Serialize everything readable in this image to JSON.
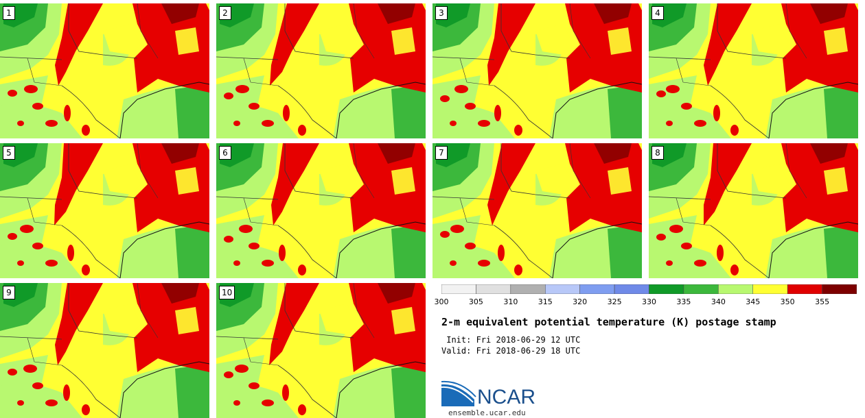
{
  "members": [
    "1",
    "2",
    "3",
    "4",
    "5",
    "6",
    "7",
    "8",
    "9",
    "10"
  ],
  "colorbar": {
    "ticks": [
      "300",
      "305",
      "310",
      "315",
      "320",
      "325",
      "330",
      "335",
      "340",
      "345",
      "350",
      "355"
    ],
    "colors": [
      "#f2f2f2",
      "#e0e0e0",
      "#b0b0b0",
      "#b8c8f8",
      "#7f9df0",
      "#6f8ae8",
      "#109a28",
      "#3cb83c",
      "#b8f870",
      "#ffff33",
      "#e00000",
      "#7d0000"
    ]
  },
  "map_colors": {
    "yellow": "#ffff33",
    "red": "#e60000",
    "darkred": "#7d0000",
    "lightgreen": "#b8f870",
    "green": "#3cb83c",
    "darkgreen": "#109a28",
    "line": "#333333"
  },
  "title": "2-m equivalent potential temperature (K) postage stamp",
  "init_line": " Init: Fri 2018-06-29 12 UTC",
  "valid_line": "Valid: Fri 2018-06-29 18 UTC",
  "logo_text": "NCAR",
  "site": "ensemble.ucar.edu"
}
